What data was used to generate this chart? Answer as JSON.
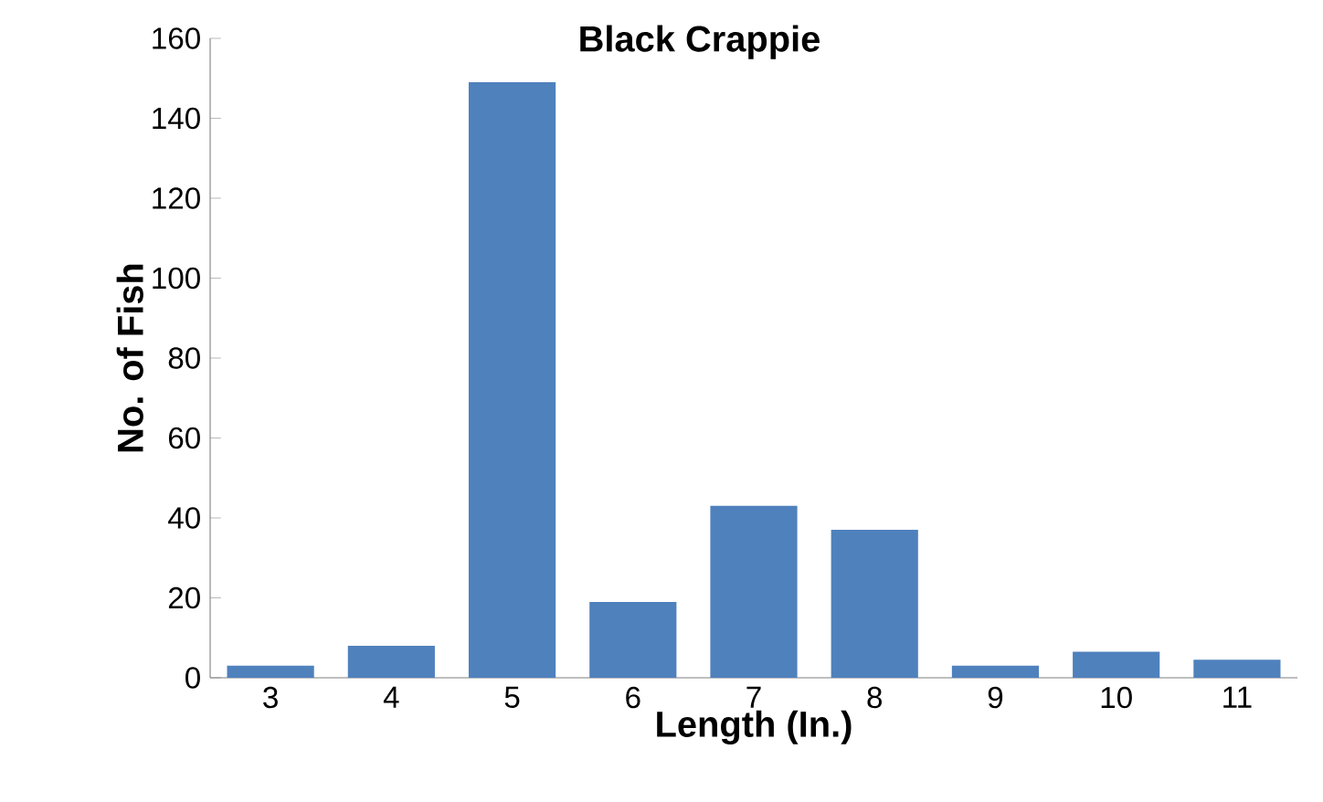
{
  "chart_data": {
    "type": "bar",
    "title": "Black Crappie",
    "xlabel": "Length (In.)",
    "ylabel": "No. of Fish",
    "categories": [
      "3",
      "4",
      "5",
      "6",
      "7",
      "8",
      "9",
      "10",
      "11"
    ],
    "values": [
      3,
      8,
      149,
      19,
      43,
      37,
      3,
      6.5,
      4.5
    ],
    "color": "#4f81bd",
    "ylim": [
      0,
      160
    ],
    "yticks": [
      0,
      20,
      40,
      60,
      80,
      100,
      120,
      140,
      160
    ],
    "grid": false
  }
}
